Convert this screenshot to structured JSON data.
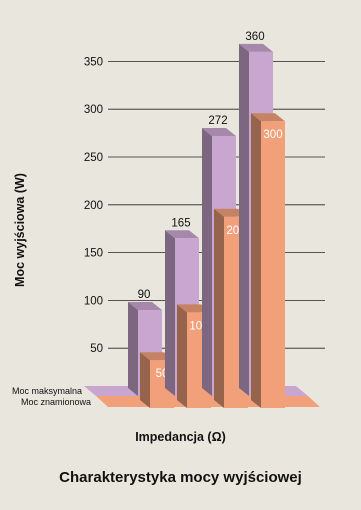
{
  "chart_data": {
    "type": "bar",
    "title": "Charakterystyka mocy wyjściowej",
    "xlabel": "Impedancja (Ω)",
    "ylabel": "Moc wyjściowa (W)",
    "ylim": [
      0,
      375
    ],
    "yticks": [
      50,
      100,
      150,
      200,
      250,
      300,
      350
    ],
    "grid": true,
    "categories": [
      "",
      "",
      "",
      ""
    ],
    "series": [
      {
        "name": "Moc maksymalna",
        "values": [
          90,
          165,
          272,
          360
        ],
        "color": "#c9a6cf"
      },
      {
        "name": "Moc znamionowa",
        "values": [
          50,
          100,
          200,
          300
        ],
        "color": "#f2a07a"
      }
    ]
  }
}
